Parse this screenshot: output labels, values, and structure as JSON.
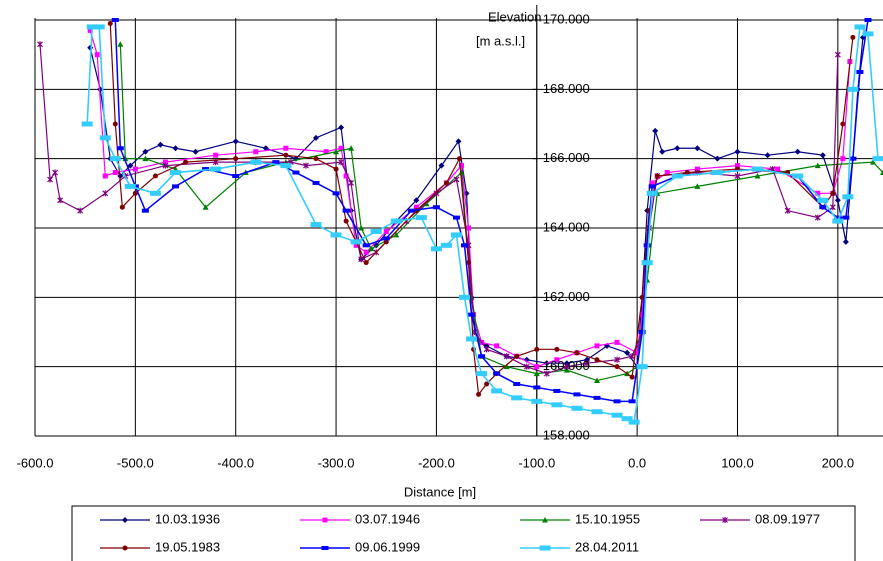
{
  "chart_data": {
    "type": "line",
    "xlabel": "Distance [m]",
    "ylabel": [
      "Elevation",
      "[m a.s.l.]"
    ],
    "xlim": [
      -600,
      245
    ],
    "ylim": [
      158,
      170
    ],
    "xticks": [
      {
        "value": -600,
        "label": "-600.0"
      },
      {
        "value": -500,
        "label": "-500.0"
      },
      {
        "value": -400,
        "label": "-400.0"
      },
      {
        "value": -300,
        "label": "-300.0"
      },
      {
        "value": -200,
        "label": "-200.0"
      },
      {
        "value": -100,
        "label": "-100.0"
      },
      {
        "value": 0,
        "label": "0.0"
      },
      {
        "value": 100,
        "label": "100.0"
      },
      {
        "value": 200,
        "label": "200.0"
      }
    ],
    "yticks": [
      {
        "value": 158,
        "label": "158.000"
      },
      {
        "value": 160,
        "label": "160.000"
      },
      {
        "value": 162,
        "label": "162.000"
      },
      {
        "value": 164,
        "label": "164.000"
      },
      {
        "value": 166,
        "label": "166.000"
      },
      {
        "value": 168,
        "label": "168.000"
      },
      {
        "value": 170,
        "label": "170.000"
      }
    ],
    "y_axis_at": -100,
    "grid": true,
    "legend": "bottom",
    "series": [
      {
        "name": "10.03.1936",
        "color": "#000080",
        "marker": "diamond",
        "x": [
          -545,
          -535,
          -525,
          -515,
          -505,
          -490,
          -475,
          -460,
          -440,
          -400,
          -370,
          -340,
          -320,
          -295,
          -285,
          -275,
          -260,
          -240,
          -220,
          -195,
          -178,
          -170,
          -165,
          -160,
          -150,
          -130,
          -110,
          -90,
          -70,
          -50,
          -30,
          -10,
          0,
          5,
          10,
          18,
          25,
          40,
          60,
          80,
          100,
          130,
          160,
          185,
          200,
          208,
          215,
          220,
          225
        ],
        "values": [
          169.2,
          168,
          166,
          165.5,
          165.8,
          166.2,
          166.4,
          166.3,
          166.2,
          166.5,
          166.3,
          166,
          166.6,
          166.9,
          164.5,
          163.1,
          163.5,
          164.2,
          164.8,
          165.8,
          166.5,
          165,
          162,
          160.8,
          160.6,
          160.3,
          160.2,
          160.1,
          160.1,
          160.2,
          160.6,
          160.4,
          160,
          162,
          164.5,
          166.8,
          166.2,
          166.3,
          166.3,
          166,
          166.2,
          166.1,
          166.2,
          166.1,
          164.8,
          163.6,
          166,
          168,
          169.5
        ]
      },
      {
        "name": "03.07.1946",
        "color": "#ff00ff",
        "marker": "square",
        "x": [
          -545,
          -538,
          -530,
          -520,
          -500,
          -470,
          -420,
          -380,
          -350,
          -310,
          -295,
          -290,
          -280,
          -270,
          -250,
          -220,
          -190,
          -175,
          -168,
          -163,
          -155,
          -140,
          -120,
          -100,
          -80,
          -60,
          -40,
          -20,
          0,
          5,
          10,
          15,
          30,
          60,
          100,
          140,
          180,
          195,
          205,
          212
        ],
        "values": [
          169.7,
          169,
          165.5,
          165.6,
          165.7,
          165.9,
          166.1,
          166.2,
          166.3,
          166.2,
          166.3,
          165.5,
          163.5,
          163.3,
          163.9,
          164.6,
          165.3,
          165.8,
          164,
          161.5,
          160.7,
          160.6,
          160.3,
          160,
          160.2,
          160.4,
          160.6,
          160.7,
          160.4,
          161.5,
          163.5,
          165.3,
          165.6,
          165.7,
          165.8,
          165.7,
          165,
          165,
          166,
          168.8
        ]
      },
      {
        "name": "15.10.1955",
        "color": "#008000",
        "marker": "triangle",
        "x": [
          -515,
          -510,
          -490,
          -460,
          -430,
          -390,
          -350,
          -300,
          -285,
          -275,
          -265,
          -240,
          -210,
          -175,
          -165,
          -155,
          -130,
          -100,
          -70,
          -40,
          -10,
          0,
          10,
          20,
          60,
          120,
          180,
          235,
          245
        ],
        "values": [
          169.3,
          166,
          166,
          165.7,
          164.6,
          165.6,
          165.9,
          166.2,
          166.3,
          164,
          163.4,
          163.8,
          164.7,
          165.6,
          162,
          160.3,
          160,
          159.8,
          159.9,
          159.6,
          159.8,
          160,
          162.5,
          165,
          165.2,
          165.5,
          165.8,
          165.9,
          165.6
        ]
      },
      {
        "name": "08.09.1977",
        "color": "#800080",
        "marker": "cross",
        "x": [
          -595,
          -585,
          -580,
          -575,
          -555,
          -530,
          -510,
          -470,
          -420,
          -380,
          -345,
          -330,
          -295,
          -285,
          -275,
          -260,
          -230,
          -200,
          -180,
          -168,
          -162,
          -150,
          -130,
          -110,
          -90,
          -70,
          -50,
          -20,
          -5,
          5,
          12,
          20,
          60,
          100,
          135,
          150,
          180,
          195,
          200
        ],
        "values": [
          169.3,
          165.4,
          165.6,
          164.8,
          164.5,
          165,
          165.5,
          165.8,
          165.9,
          165.9,
          165.9,
          165.8,
          165.9,
          165.3,
          163.1,
          163.3,
          164.2,
          165,
          165.4,
          163.5,
          161,
          160.5,
          160.3,
          160,
          159.8,
          160,
          160.1,
          160.2,
          160.3,
          161,
          164,
          165.5,
          165.6,
          165.5,
          165.7,
          164.5,
          164.3,
          164.6,
          169
        ]
      },
      {
        "name": "19.05.1983",
        "color": "#800000",
        "marker": "circle",
        "x": [
          -525,
          -520,
          -513,
          -500,
          -480,
          -450,
          -400,
          -350,
          -320,
          -300,
          -290,
          -270,
          -250,
          -220,
          -190,
          -177,
          -168,
          -163,
          -158,
          -150,
          -140,
          -120,
          -100,
          -80,
          -60,
          -40,
          -20,
          -5,
          5,
          12,
          20,
          50,
          100,
          150,
          185,
          195,
          205,
          215
        ],
        "values": [
          169.9,
          167,
          164.6,
          165,
          165.5,
          165.9,
          166,
          166.1,
          166,
          165.7,
          164.2,
          163,
          163.6,
          164.5,
          165.3,
          166,
          163,
          160.5,
          159.2,
          159.5,
          159.8,
          160.3,
          160.5,
          160.5,
          160.4,
          160.2,
          160,
          159.7,
          162,
          164.5,
          165.5,
          165.6,
          165.7,
          165.6,
          164.6,
          165,
          167,
          169.5
        ]
      },
      {
        "name": "09.06.1999",
        "color": "#0000ff",
        "marker": "bar",
        "x": [
          -520,
          -515,
          -500,
          -490,
          -460,
          -430,
          -400,
          -360,
          -340,
          -320,
          -300,
          -290,
          -270,
          -250,
          -225,
          -200,
          -180,
          -172,
          -165,
          -155,
          -140,
          -120,
          -100,
          -80,
          -60,
          -40,
          -20,
          -5,
          5,
          10,
          15,
          40,
          80,
          120,
          160,
          185,
          200,
          208,
          215,
          222,
          230
        ],
        "values": [
          170,
          166.3,
          165.2,
          164.5,
          165.2,
          165.7,
          165.5,
          165.9,
          165.6,
          165.3,
          165,
          164.5,
          163.5,
          163.7,
          164.5,
          164.6,
          164.3,
          163.5,
          161.5,
          160.3,
          159.8,
          159.5,
          159.4,
          159.3,
          159.2,
          159.1,
          159,
          159,
          161,
          163.5,
          165.2,
          165.5,
          165.6,
          165.7,
          165.5,
          164.6,
          164.3,
          164.3,
          166,
          168.5,
          170
        ]
      },
      {
        "name": "28.04.2011",
        "color": "#33ccff",
        "marker": "widebar",
        "x": [
          -548,
          -543,
          -536,
          -530,
          -520,
          -505,
          -480,
          -460,
          -420,
          -380,
          -350,
          -320,
          -300,
          -280,
          -260,
          -240,
          -215,
          -200,
          -190,
          -180,
          -172,
          -165,
          -155,
          -140,
          -120,
          -100,
          -80,
          -60,
          -40,
          -20,
          -10,
          -3,
          5,
          10,
          15,
          40,
          80,
          120,
          160,
          185,
          200,
          210,
          215,
          222,
          230,
          240
        ],
        "values": [
          167,
          169.8,
          169.8,
          166.6,
          166,
          165.2,
          165,
          165.6,
          165.7,
          165.9,
          165.8,
          164.1,
          163.8,
          163.6,
          163.9,
          164.2,
          164.3,
          163.4,
          163.5,
          163.8,
          162,
          160.8,
          159.8,
          159.3,
          159.1,
          159,
          158.9,
          158.8,
          158.7,
          158.6,
          158.5,
          158.4,
          160,
          163,
          165,
          165.5,
          165.6,
          165.7,
          165.5,
          164.8,
          164.2,
          164.9,
          168,
          169.8,
          169.6,
          166
        ]
      }
    ]
  }
}
